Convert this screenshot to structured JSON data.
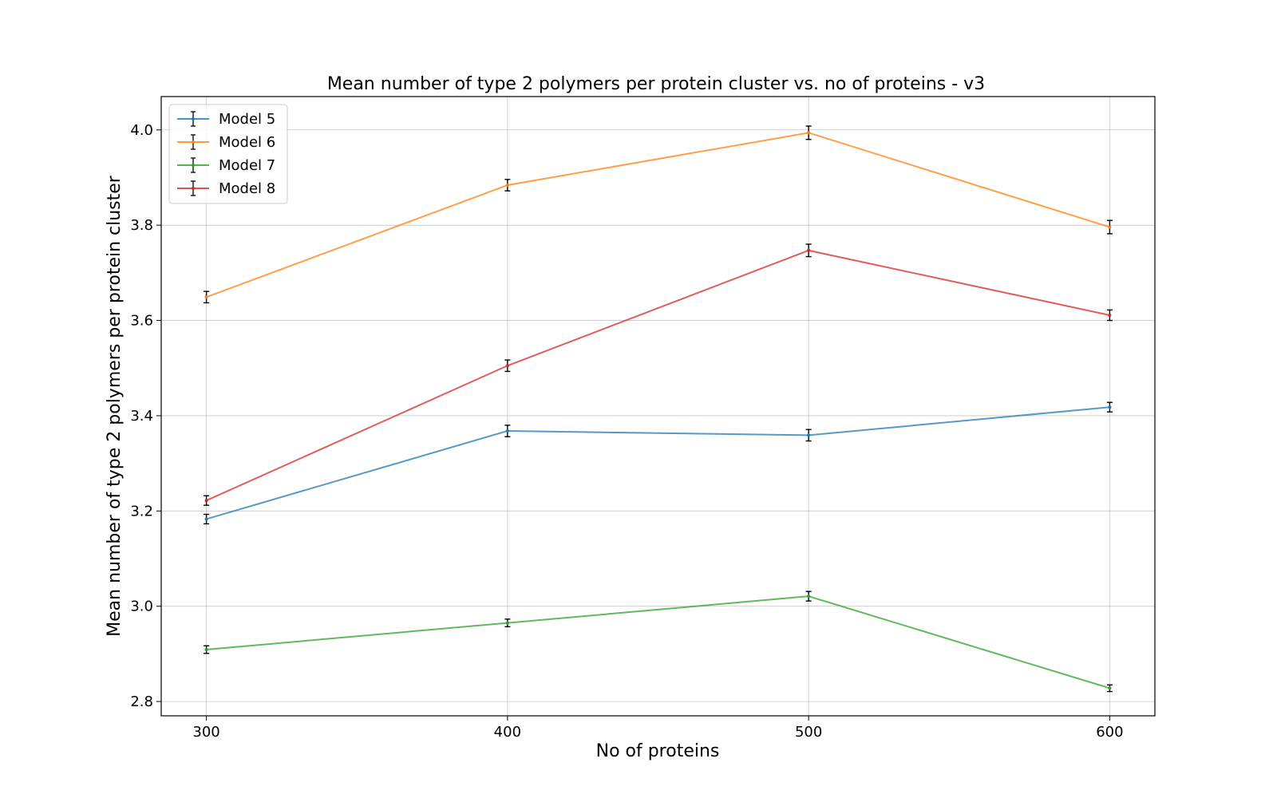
{
  "chart_data": {
    "type": "line",
    "title": "Mean number of type 2 polymers per protein cluster vs. no of proteins - v3",
    "xlabel": "No of proteins",
    "ylabel": "Mean number of type 2 polymers per protein cluster",
    "x": [
      300,
      400,
      500,
      600
    ],
    "x_ticks": [
      "300",
      "400",
      "500",
      "600"
    ],
    "xlim": [
      285,
      615
    ],
    "y_ticks": [
      "2.8",
      "3.0",
      "3.2",
      "3.4",
      "3.6",
      "3.8",
      "4.0"
    ],
    "ylim": [
      2.77,
      4.07
    ],
    "grid": true,
    "legend_position": "top-left",
    "error_bar_color": "#000000",
    "series": [
      {
        "name": "Model 5",
        "color": "#1f77b4",
        "values": [
          3.183,
          3.368,
          3.359,
          3.418
        ],
        "errors": [
          0.01,
          0.012,
          0.012,
          0.01
        ]
      },
      {
        "name": "Model 6",
        "color": "#ff7f0e",
        "values": [
          3.649,
          3.884,
          3.994,
          3.796
        ],
        "errors": [
          0.012,
          0.012,
          0.014,
          0.014
        ]
      },
      {
        "name": "Model 7",
        "color": "#2ca02c",
        "values": [
          2.909,
          2.965,
          3.021,
          2.828
        ],
        "errors": [
          0.008,
          0.008,
          0.01,
          0.007
        ]
      },
      {
        "name": "Model 8",
        "color": "#d62728",
        "values": [
          3.222,
          3.505,
          3.747,
          3.611
        ],
        "errors": [
          0.01,
          0.012,
          0.013,
          0.011
        ]
      }
    ]
  }
}
